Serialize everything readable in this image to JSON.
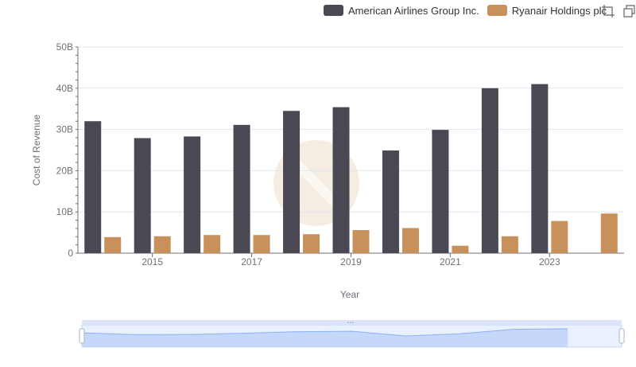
{
  "legend": {
    "items": [
      {
        "name": "American Airlines Group Inc.",
        "color": "#4a4953"
      },
      {
        "name": "Ryanair Holdings plc",
        "color": "#c8915b"
      }
    ]
  },
  "toolbox": {
    "icons": [
      "data-zoom-icon",
      "restore-icon"
    ]
  },
  "chart_data": {
    "type": "bar",
    "categories": [
      "2014",
      "2015",
      "2016",
      "2017",
      "2018",
      "2019",
      "2020",
      "2021",
      "2022",
      "2023",
      "2024"
    ],
    "x_tick_labels": [
      "2015",
      "2017",
      "2019",
      "2021",
      "2023"
    ],
    "series": [
      {
        "name": "American Airlines Group Inc.",
        "color": "#4a4953",
        "values": [
          32.0,
          27.9,
          28.3,
          31.1,
          34.5,
          35.4,
          24.9,
          29.9,
          40.0,
          41.0,
          null
        ]
      },
      {
        "name": "Ryanair Holdings plc",
        "color": "#c8915b",
        "values": [
          3.9,
          4.1,
          4.4,
          4.4,
          4.6,
          5.6,
          6.1,
          1.8,
          4.1,
          7.8,
          9.6
        ]
      }
    ],
    "y_ticks": [
      "0",
      "10B",
      "20B",
      "30B",
      "40B",
      "50B"
    ],
    "ylim": [
      0,
      50
    ],
    "y_unit": "billions",
    "xlabel": "Year",
    "ylabel": "Cost of Revenue",
    "grid": "horizontal",
    "legend_position": "top-right",
    "datazoom": {
      "start": 0,
      "end": 100
    }
  }
}
